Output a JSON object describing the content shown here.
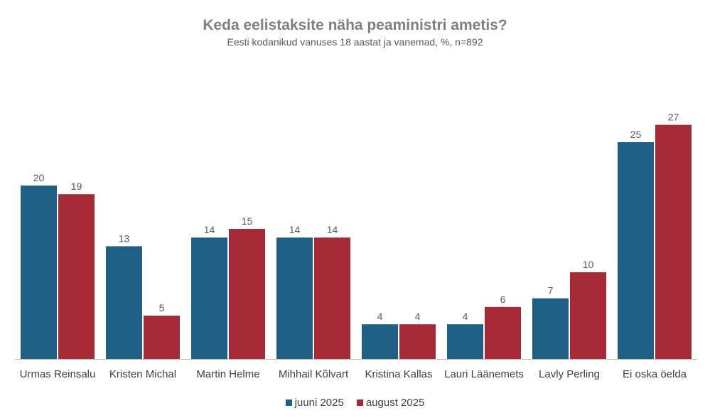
{
  "chart_data": {
    "type": "bar",
    "title": "Keda eelistaksite näha peaministri ametis?",
    "subtitle": "Eesti kodanikud vanuses 18 aastat ja vanemad, %, n=892",
    "categories": [
      "Urmas Reinsalu",
      "Kristen Michal",
      "Martin Helme",
      "Mihhail Kõlvart",
      "Kristina Kallas",
      "Lauri Läänemets",
      "Lavly Perling",
      "Ei oska öelda"
    ],
    "series": [
      {
        "name": "juuni 2025",
        "color": "#1f5f85",
        "values": [
          20,
          13,
          14,
          14,
          4,
          4,
          7,
          25
        ],
        "labels": [
          "20",
          "13",
          "14",
          "14",
          "4",
          "4",
          "7",
          "25"
        ]
      },
      {
        "name": "august 2025",
        "color": "#a52a35",
        "values": [
          19,
          5,
          15,
          14,
          4,
          6,
          10,
          27
        ],
        "labels": [
          "19",
          "5",
          "15",
          "14",
          "4",
          "6",
          "10",
          "27"
        ]
      }
    ],
    "ylim": [
      0,
      30
    ],
    "grid": false,
    "legend_position": "bottom"
  }
}
